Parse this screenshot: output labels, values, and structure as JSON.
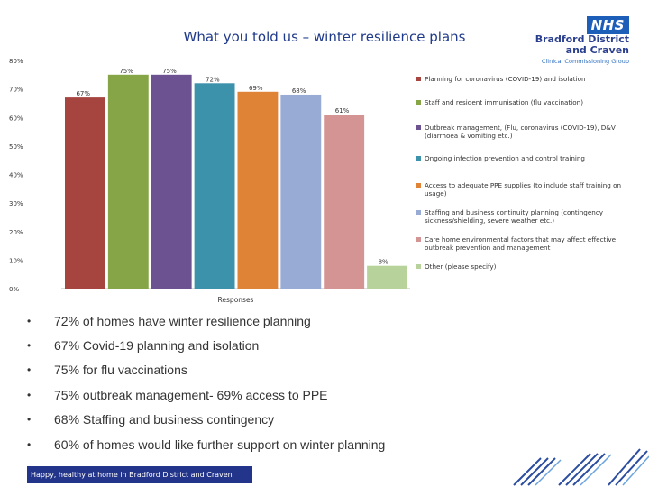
{
  "title": "What you told us – winter resilience plans",
  "logo": {
    "badge": "NHS",
    "name_line1": "Bradford District",
    "name_line2": "and Craven",
    "subtitle": "Clinical Commissioning Group"
  },
  "chart_data": {
    "type": "bar",
    "xlabel": "Responses",
    "ylabel": "",
    "ylim": [
      0,
      80
    ],
    "yticks": [
      "0%",
      "10%",
      "20%",
      "30%",
      "40%",
      "50%",
      "60%",
      "70%",
      "80%"
    ],
    "grid": false,
    "legend_position": "right",
    "series": [
      {
        "name": "Planning for coronavirus (COVID-19) and isolation",
        "value": 67,
        "label": "67%",
        "color": "#a6443f"
      },
      {
        "name": "Staff and resident immunisation (flu vaccination)",
        "value": 75,
        "label": "75%",
        "color": "#86a546"
      },
      {
        "name": "Outbreak management, (Flu, coronavirus (COVID-19), D&V (diarrhoea & vomiting etc.)",
        "value": 75,
        "label": "75%",
        "color": "#6c5290"
      },
      {
        "name": "Ongoing infection prevention and control training",
        "value": 72,
        "label": "72%",
        "color": "#3c92ab"
      },
      {
        "name": "Access to adequate PPE supplies (to include staff training on usage)",
        "value": 69,
        "label": "69%",
        "color": "#df8337"
      },
      {
        "name": "Staffing and business continuity planning (contingency sickness/shielding, severe weather etc.)",
        "value": 68,
        "label": "68%",
        "color": "#97abd5"
      },
      {
        "name": "Care home environmental factors that may affect effective outbreak prevention and management",
        "value": 61,
        "label": "61%",
        "color": "#d49494"
      },
      {
        "name": "Other (please specify)",
        "value": 8,
        "label": "8%",
        "color": "#b8d29b"
      }
    ]
  },
  "bullets": [
    "72% of homes have winter resilience planning",
    "67% Covid-19 planning and isolation",
    "75% for flu vaccinations",
    "75% outbreak management- 69% access to PPE",
    "68% Staffing and business contingency",
    "60% of homes would like further support on winter planning"
  ],
  "bullet_symbol": "•",
  "footer": "Happy, healthy at home in Bradford District and Craven",
  "colors": {
    "title": "#1f3a8a",
    "nhs_blue": "#1d5fb8",
    "footer_bar": "#23358a"
  }
}
